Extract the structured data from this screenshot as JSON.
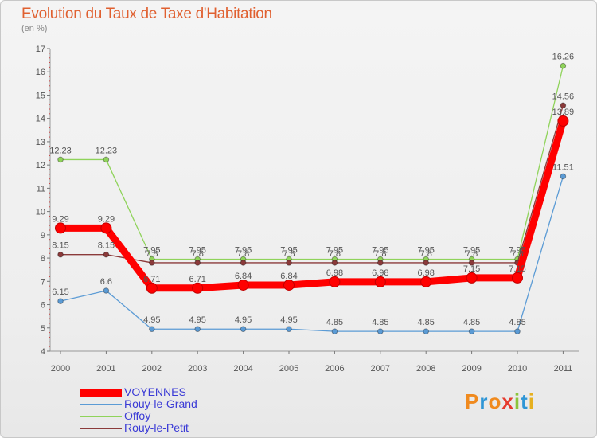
{
  "title": "Evolution du Taux de Taxe d'Habitation",
  "subtitle": "(en %)",
  "logo": {
    "text": "Proxiti",
    "colors": [
      "#f08a1e",
      "#2f96d6",
      "#f08a1e",
      "#e63b2e",
      "#8cc43c",
      "#2f96d6",
      "#e6b020"
    ]
  },
  "chart_data": {
    "type": "line",
    "categories": [
      "2000",
      "2001",
      "2002",
      "2003",
      "2004",
      "2005",
      "2006",
      "2007",
      "2008",
      "2009",
      "2010",
      "2011"
    ],
    "ylim": [
      4,
      17
    ],
    "yticks": [
      "4",
      "5",
      "6",
      "7",
      "8",
      "9",
      "10",
      "11",
      "12",
      "13",
      "14",
      "15",
      "16",
      "17"
    ],
    "grid": false,
    "legend_position": "bottom-left",
    "series": [
      {
        "name": "VOYENNES",
        "color": "#ff0000",
        "values": [
          9.29,
          9.29,
          6.71,
          6.71,
          6.84,
          6.84,
          6.98,
          6.98,
          6.98,
          7.15,
          7.15,
          13.89
        ],
        "labels": [
          "9.29",
          "9.29",
          "6.71",
          "6.71",
          "6.84",
          "6.84",
          "6.98",
          "6.98",
          "6.98",
          "7.15",
          "7.15",
          "13.89"
        ]
      },
      {
        "name": "Rouy-le-Grand",
        "color": "#5b9bd5",
        "values": [
          6.15,
          6.6,
          4.95,
          4.95,
          4.95,
          4.95,
          4.85,
          4.85,
          4.85,
          4.85,
          4.85,
          11.51
        ],
        "labels": [
          "6.15",
          "6.6",
          "4.95",
          "4.95",
          "4.95",
          "4.95",
          "4.85",
          "4.85",
          "4.85",
          "4.85",
          "4.85",
          "11.51"
        ]
      },
      {
        "name": "Offoy",
        "color": "#8fd35a",
        "values": [
          12.23,
          12.23,
          7.95,
          7.95,
          7.95,
          7.95,
          7.95,
          7.95,
          7.95,
          7.95,
          7.95,
          16.26
        ],
        "labels": [
          "12.23",
          "12.23",
          "7.95",
          "7.95",
          "7.95",
          "7.95",
          "7.95",
          "7.95",
          "7.95",
          "7.95",
          "7.95",
          "16.26"
        ]
      },
      {
        "name": "Rouy-le-Petit",
        "color": "#8b3a3a",
        "values": [
          8.15,
          8.15,
          7.8,
          7.8,
          7.8,
          7.8,
          7.8,
          7.8,
          7.8,
          7.8,
          7.8,
          14.56
        ],
        "labels": [
          "8.15",
          "8.15",
          "7.8",
          "7.8",
          "7.8",
          "7.8",
          "7.8",
          "7.8",
          "7.8",
          "7.8",
          "7.8",
          "14.56"
        ]
      }
    ]
  }
}
